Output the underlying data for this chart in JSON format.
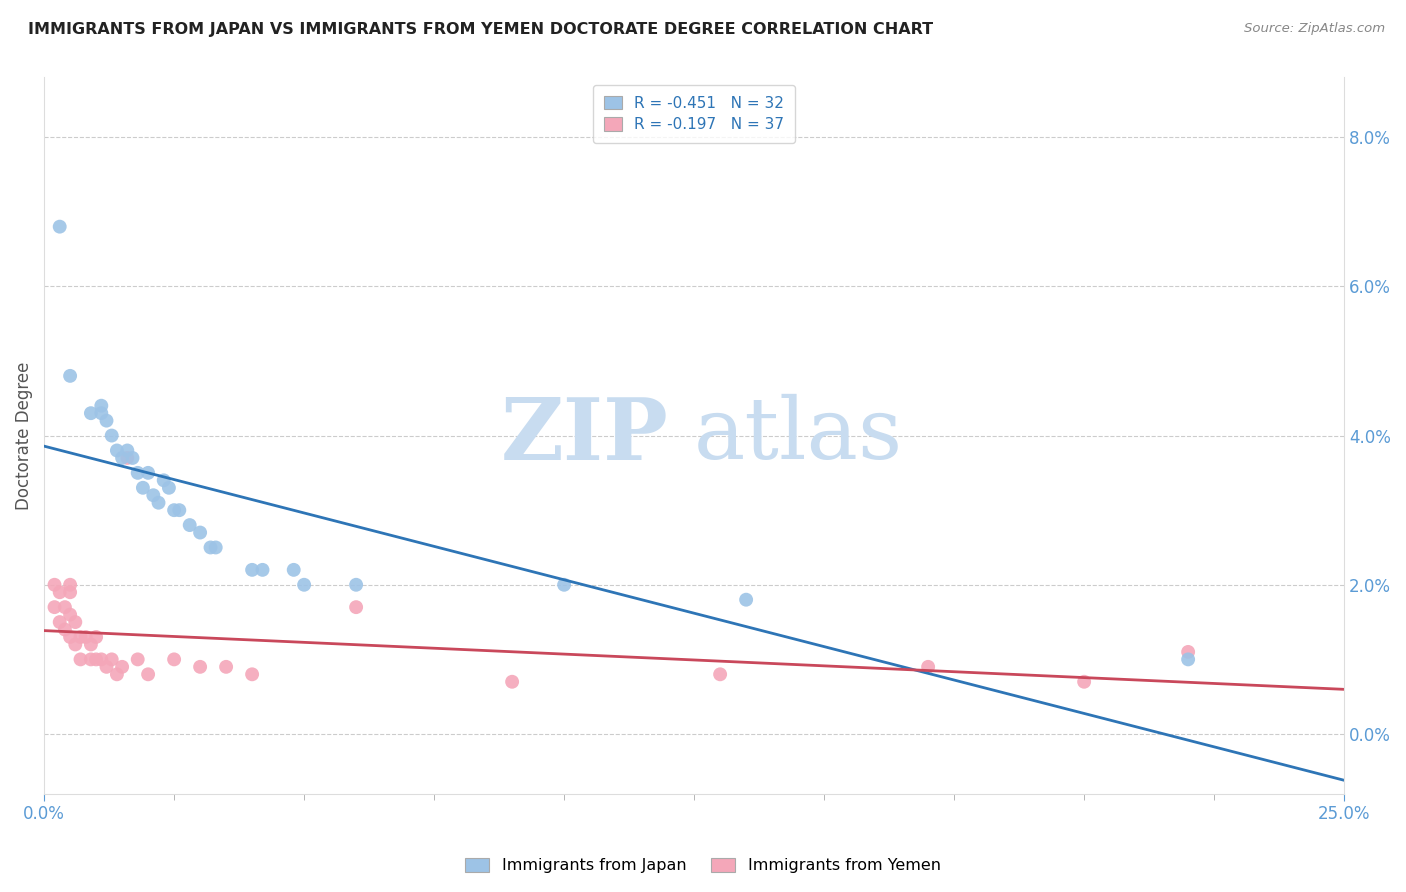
{
  "title": "IMMIGRANTS FROM JAPAN VS IMMIGRANTS FROM YEMEN DOCTORATE DEGREE CORRELATION CHART",
  "source": "Source: ZipAtlas.com",
  "ylabel": "Doctorate Degree",
  "right_ytick_vals": [
    0.0,
    0.02,
    0.04,
    0.06,
    0.08
  ],
  "xlim": [
    0.0,
    0.25
  ],
  "ylim": [
    -0.008,
    0.088
  ],
  "japan_color": "#9DC3E6",
  "japan_line_color": "#2E75B6",
  "yemen_color": "#F4A7B9",
  "yemen_line_color": "#C9485B",
  "legend_japan_R": "-0.451",
  "legend_japan_N": "32",
  "legend_yemen_R": "-0.197",
  "legend_yemen_N": "37",
  "watermark_zip": "ZIP",
  "watermark_atlas": "atlas",
  "background_color": "#FFFFFF",
  "grid_color": "#CCCCCC",
  "japan_x": [
    0.005,
    0.009,
    0.011,
    0.011,
    0.012,
    0.013,
    0.014,
    0.015,
    0.016,
    0.017,
    0.018,
    0.019,
    0.02,
    0.021,
    0.022,
    0.023,
    0.024,
    0.025,
    0.026,
    0.028,
    0.03,
    0.032,
    0.033,
    0.04,
    0.042,
    0.048,
    0.05,
    0.06,
    0.1,
    0.135,
    0.22,
    0.003
  ],
  "japan_y": [
    0.048,
    0.043,
    0.044,
    0.043,
    0.042,
    0.04,
    0.038,
    0.037,
    0.038,
    0.037,
    0.035,
    0.033,
    0.035,
    0.032,
    0.031,
    0.034,
    0.033,
    0.03,
    0.03,
    0.028,
    0.027,
    0.025,
    0.025,
    0.022,
    0.022,
    0.022,
    0.02,
    0.02,
    0.02,
    0.018,
    0.01,
    0.068
  ],
  "yemen_x": [
    0.002,
    0.002,
    0.003,
    0.003,
    0.004,
    0.004,
    0.005,
    0.005,
    0.005,
    0.006,
    0.006,
    0.007,
    0.007,
    0.008,
    0.009,
    0.009,
    0.01,
    0.01,
    0.011,
    0.012,
    0.013,
    0.014,
    0.015,
    0.016,
    0.018,
    0.02,
    0.025,
    0.03,
    0.035,
    0.04,
    0.06,
    0.09,
    0.13,
    0.17,
    0.2,
    0.22,
    0.005
  ],
  "yemen_y": [
    0.02,
    0.017,
    0.019,
    0.015,
    0.017,
    0.014,
    0.019,
    0.016,
    0.013,
    0.015,
    0.012,
    0.013,
    0.01,
    0.013,
    0.012,
    0.01,
    0.013,
    0.01,
    0.01,
    0.009,
    0.01,
    0.008,
    0.009,
    0.037,
    0.01,
    0.008,
    0.01,
    0.009,
    0.009,
    0.008,
    0.017,
    0.007,
    0.008,
    0.009,
    0.007,
    0.011,
    0.02
  ]
}
